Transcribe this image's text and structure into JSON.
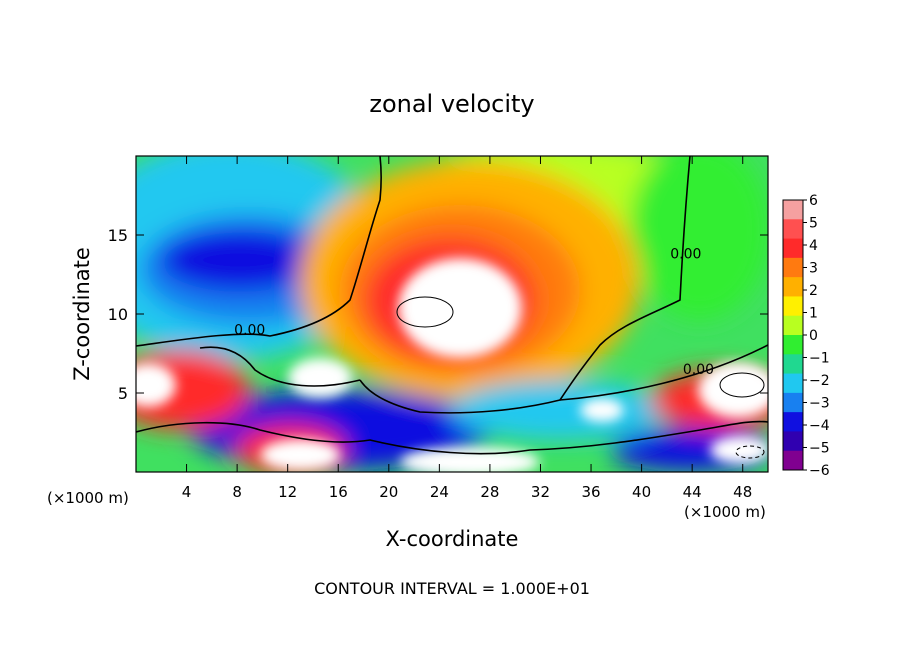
{
  "chart_data": {
    "type": "heatmap",
    "title": "zonal velocity",
    "xlabel": "X-coordinate",
    "ylabel": "Z-coordinate",
    "x_unit_label": "(×1000 m)",
    "x_unit_label_right": "(×1000 m)",
    "xlim": [
      0,
      50
    ],
    "ylim": [
      0,
      20
    ],
    "x_ticks": [
      4,
      8,
      12,
      16,
      20,
      24,
      28,
      32,
      36,
      40,
      44,
      48
    ],
    "y_ticks": [
      5,
      10,
      15
    ],
    "colorbar": {
      "min": -6,
      "max": 6,
      "tick_values": [
        6,
        5,
        4,
        3,
        2,
        1,
        0,
        -1,
        -2,
        -3,
        -4,
        -5,
        -6
      ],
      "colors": [
        "#f5a0a0",
        "#ff5050",
        "#ff2a2a",
        "#ff7a10",
        "#ffb000",
        "#fff000",
        "#b8ff20",
        "#30ee30",
        "#20d890",
        "#20c8f0",
        "#1880f0",
        "#1010e0",
        "#3000b0",
        "#800090"
      ]
    },
    "contour_labels": [
      {
        "text": "0.00",
        "x": 9,
        "y": 8.7
      },
      {
        "text": "0.00",
        "x": 43.5,
        "y": 13.5
      },
      {
        "text": "0.00",
        "x": 44.5,
        "y": 6.2
      }
    ],
    "regions": [
      {
        "kind": "saturated_positive",
        "x": 23.5,
        "y": 11,
        "rx": 4.5,
        "ry": 3
      },
      {
        "kind": "strong_positive",
        "x": 26,
        "y": 12,
        "rx": 7.5,
        "ry": 5
      },
      {
        "kind": "negative_core",
        "x": 11,
        "y": 14,
        "rx": 9,
        "ry": 3
      },
      {
        "kind": "saturated_positive",
        "x": 1,
        "y": 5.5,
        "rx": 2,
        "ry": 1.5
      },
      {
        "kind": "saturated_negative",
        "x": 14.5,
        "y": 6,
        "rx": 2.5,
        "ry": 1.5
      },
      {
        "kind": "saturated_positive",
        "x": 12.5,
        "y": 1.2,
        "rx": 3,
        "ry": 1.2
      },
      {
        "kind": "saturated_positive",
        "x": 26.5,
        "y": 1.0,
        "rx": 4.5,
        "ry": 1.3
      },
      {
        "kind": "saturated_positive",
        "x": 36.5,
        "y": 3.8,
        "rx": 2,
        "ry": 1.0
      },
      {
        "kind": "saturated_positive",
        "x": 47.5,
        "y": 5.5,
        "rx": 3,
        "ry": 1.8
      },
      {
        "kind": "saturated_negative",
        "x": 48,
        "y": 1.5,
        "rx": 2.5,
        "ry": 1
      }
    ],
    "footer": "CONTOUR INTERVAL = 1.000E+01"
  }
}
